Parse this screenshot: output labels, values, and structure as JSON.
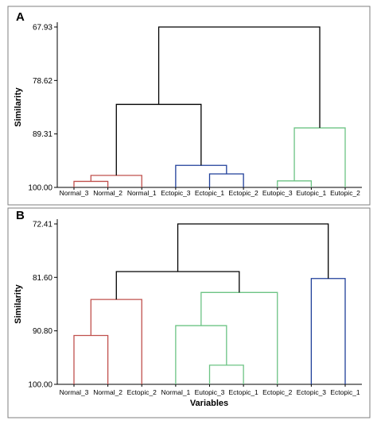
{
  "chart_data": [
    {
      "type": "dendrogram",
      "panel_label": "A",
      "ylabel": "Similarity",
      "xlabel": "",
      "y_ticks": [
        "67.93",
        "78.62",
        "89.31",
        "100.00"
      ],
      "ylim": [
        100.0,
        67.93
      ],
      "leaves": [
        "Normal_3",
        "Normal_2",
        "Normal_1",
        "Ectopic_3",
        "Ectopic_1",
        "Ectopic_2",
        "Eutopic_3",
        "Eutopic_1",
        "Eutopic_2"
      ],
      "clusters": [
        "#c0504d",
        "#1f3f99",
        "#6cc384"
      ],
      "merges": [
        {
          "left": "L0",
          "right": "L1",
          "similarity": 98.8,
          "color": "#c0504d"
        },
        {
          "left": "M0",
          "right": "L2",
          "similarity": 97.6,
          "color": "#c0504d"
        },
        {
          "left": "L4",
          "right": "L5",
          "similarity": 97.3,
          "color": "#1f3f99"
        },
        {
          "left": "L3",
          "right": "M2",
          "similarity": 95.6,
          "color": "#1f3f99"
        },
        {
          "left": "L6",
          "right": "L7",
          "similarity": 98.7,
          "color": "#6cc384"
        },
        {
          "left": "M4",
          "right": "L8",
          "similarity": 88.1,
          "color": "#6cc384"
        },
        {
          "left": "M1",
          "right": "M3",
          "similarity": 83.4,
          "color": "#000000"
        },
        {
          "left": "M6",
          "right": "M5",
          "similarity": 67.93,
          "color": "#000000"
        }
      ]
    },
    {
      "type": "dendrogram",
      "panel_label": "B",
      "ylabel": "Similarity",
      "xlabel": "Variables",
      "y_ticks": [
        "72.41",
        "81.60",
        "90.80",
        "100.00"
      ],
      "ylim": [
        100.0,
        72.41
      ],
      "leaves": [
        "Normal_3",
        "Normal_2",
        "Ectopic_2",
        "Normal_1",
        "Eutopic_3",
        "Ectopic_1",
        "Ectopic_2",
        "Ectopic_3",
        "Ectopic_1"
      ],
      "clusters": [
        "#c0504d",
        "#6cc384",
        "#1f3f99"
      ],
      "merges": [
        {
          "left": "L0",
          "right": "L1",
          "similarity": 91.6,
          "color": "#c0504d"
        },
        {
          "left": "M0",
          "right": "L2",
          "similarity": 85.4,
          "color": "#c0504d"
        },
        {
          "left": "L4",
          "right": "L5",
          "similarity": 96.7,
          "color": "#6cc384"
        },
        {
          "left": "L3",
          "right": "M2",
          "similarity": 89.9,
          "color": "#6cc384"
        },
        {
          "left": "M3",
          "right": "L6",
          "similarity": 84.2,
          "color": "#6cc384"
        },
        {
          "left": "L7",
          "right": "L8",
          "similarity": 81.8,
          "color": "#1f3f99"
        },
        {
          "left": "M1",
          "right": "M4",
          "similarity": 80.6,
          "color": "#000000"
        },
        {
          "left": "M6",
          "right": "M5",
          "similarity": 72.41,
          "color": "#000000"
        }
      ]
    }
  ]
}
